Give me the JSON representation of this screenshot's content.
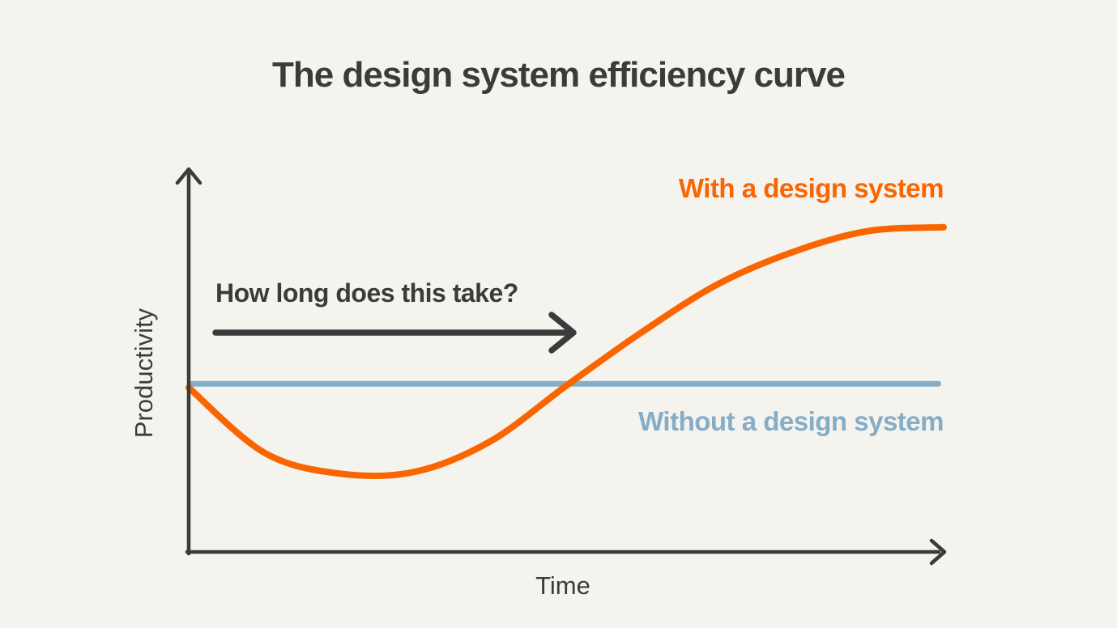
{
  "page": {
    "background_color": "#F5F3ED",
    "text_color": "#3B3B3B"
  },
  "title": {
    "text": "The design system efficiency curve"
  },
  "axes": {
    "x_label": "Time",
    "y_label": "Productivity",
    "axis_color": "#3B3B3B"
  },
  "annotation": {
    "text": "How long does this take?",
    "arrow_color": "#3B3B3B"
  },
  "series_labels": {
    "with_system": {
      "text": "With a design system",
      "color": "#F96500"
    },
    "without_system": {
      "text": "Without a design system",
      "color": "#85ADC8"
    }
  },
  "chart_data": {
    "type": "line",
    "title": "The design system efficiency curve",
    "xlabel": "Time",
    "ylabel": "Productivity",
    "xlim": [
      0,
      1
    ],
    "ylim": [
      0,
      1
    ],
    "grid": false,
    "axis_arrows": true,
    "legend_position": "inline-labels",
    "x": [
      0,
      0.1,
      0.2,
      0.3,
      0.4,
      0.5,
      0.6,
      0.7,
      0.8,
      0.9,
      1.0
    ],
    "series": [
      {
        "name": "With a design system",
        "color": "#F96500",
        "style": "smooth",
        "stroke_width": 8,
        "values": [
          0.43,
          0.26,
          0.205,
          0.21,
          0.29,
          0.435,
          0.575,
          0.7,
          0.785,
          0.84,
          0.85
        ]
      },
      {
        "name": "Without a design system",
        "color": "#85ADC8",
        "style": "straight",
        "stroke_width": 7,
        "values": [
          0.44,
          0.44,
          0.44,
          0.44,
          0.44,
          0.44,
          0.44,
          0.44,
          0.44,
          0.44,
          0.44
        ]
      }
    ],
    "annotations": [
      {
        "text": "How long does this take?",
        "type": "arrow-right",
        "x_start": 0.035,
        "x_end": 0.51,
        "y": 0.575
      }
    ]
  }
}
